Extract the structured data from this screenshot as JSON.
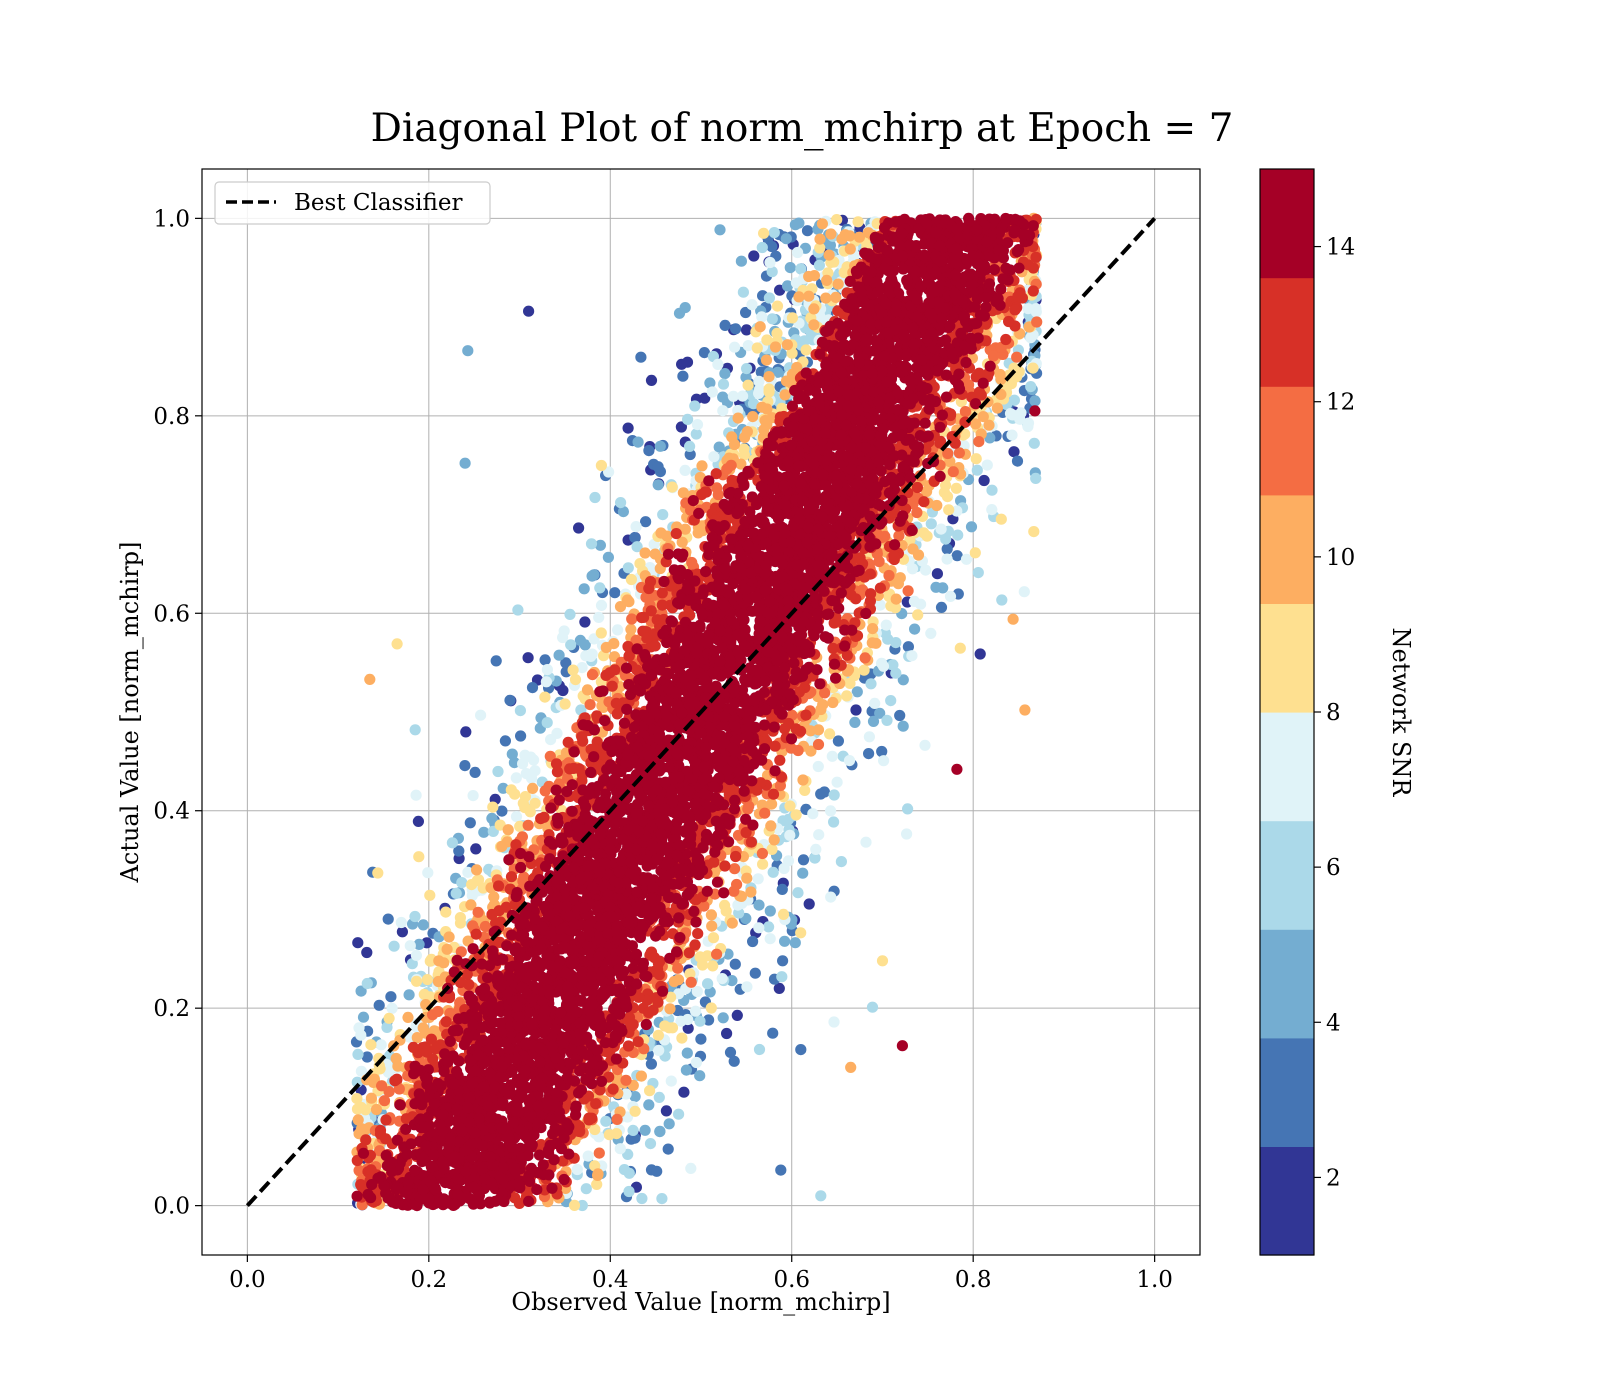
{
  "chart_data": {
    "type": "scatter",
    "title": "Diagonal Plot of norm_mchirp at Epoch = 7",
    "xlabel": "Observed Value [norm_mchirp]",
    "ylabel": "Actual Value [norm_mchirp]",
    "xlim": [
      -0.05,
      1.05
    ],
    "ylim": [
      -0.05,
      1.05
    ],
    "xticks": [
      "0.0",
      "0.2",
      "0.4",
      "0.6",
      "0.8",
      "1.0"
    ],
    "yticks": [
      "0.0",
      "0.2",
      "0.4",
      "0.6",
      "0.8",
      "1.0"
    ],
    "grid": true,
    "legend": {
      "placement": "top-left",
      "entries": [
        "Best Classifier"
      ]
    },
    "reference_line": {
      "name": "Best Classifier",
      "x": [
        0,
        1
      ],
      "y": [
        0,
        1
      ],
      "style": "dashed",
      "color": "#000000"
    },
    "colorbar": {
      "label": "Network SNR",
      "range": [
        1,
        15
      ],
      "tick_values": [
        2,
        4,
        6,
        8,
        10,
        12,
        14
      ],
      "tick_labels": [
        "2",
        "4",
        "6",
        "8",
        "10",
        "12",
        "14"
      ],
      "colors": [
        "#313695",
        "#4575b4",
        "#74add1",
        "#abd9e9",
        "#e0f3f8",
        "#fee090",
        "#fdae61",
        "#f46d43",
        "#d73027",
        "#a50026"
      ]
    },
    "points_summary": "dense band of points around the diagonal; high SNR (dark red) concentrated on diagonal, low SNR (blue) scattered at edges",
    "sample_points": [
      {
        "x": 0.135,
        "y": 0.533,
        "snr": 10
      },
      {
        "x": 0.243,
        "y": 0.866,
        "snr": 4
      },
      {
        "x": 0.857,
        "y": 0.502,
        "snr": 10
      },
      {
        "x": 0.722,
        "y": 0.162,
        "snr": 14
      },
      {
        "x": 0.632,
        "y": 0.01,
        "snr": 6
      },
      {
        "x": 0.588,
        "y": 0.036,
        "snr": 3
      },
      {
        "x": 0.31,
        "y": 0.906,
        "snr": 2
      },
      {
        "x": 0.24,
        "y": 0.752,
        "snr": 4
      },
      {
        "x": 0.185,
        "y": 0.482,
        "snr": 6
      },
      {
        "x": 0.165,
        "y": 0.569,
        "snr": 8
      },
      {
        "x": 0.844,
        "y": 0.594,
        "snr": 10
      },
      {
        "x": 0.665,
        "y": 0.14,
        "snr": 10
      },
      {
        "x": 0.7,
        "y": 0.248,
        "snr": 8
      },
      {
        "x": 0.689,
        "y": 0.201,
        "snr": 6
      },
      {
        "x": 0.61,
        "y": 0.158,
        "snr": 3
      },
      {
        "x": 0.782,
        "y": 0.442,
        "snr": 14
      },
      {
        "x": 0.868,
        "y": 0.805,
        "snr": 14
      },
      {
        "x": 0.87,
        "y": 0.895,
        "snr": 11
      },
      {
        "x": 0.795,
        "y": 1.0,
        "snr": 14
      },
      {
        "x": 0.128,
        "y": 0.053,
        "snr": 14
      }
    ]
  }
}
